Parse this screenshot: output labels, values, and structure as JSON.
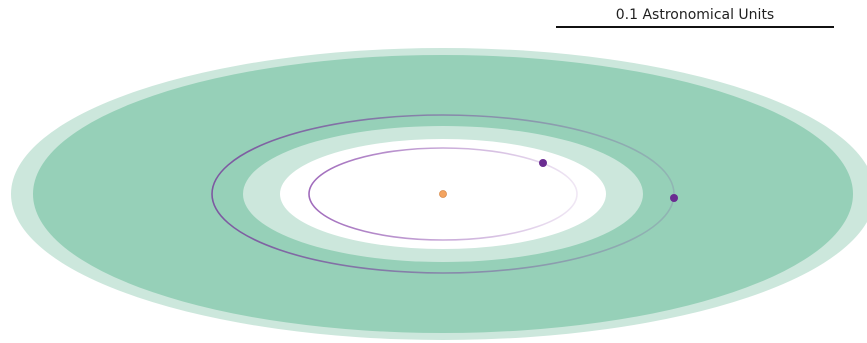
{
  "scale_bar": {
    "label": "0.1 Astronomical Units"
  },
  "colors": {
    "background": "#ffffff",
    "habitable_zone_optimistic": "#cce7dc",
    "habitable_zone_conservative": "#96d0b8",
    "inner_clearing": "#ffffff",
    "star": "#f4a460",
    "star_outline": "#d98b4a",
    "planet": "#6a2c91",
    "inner_orbit": "#9b63b8",
    "outer_orbit": "#7a4a9e",
    "scale_bar": "#111111"
  },
  "bodies": {
    "star": {
      "name": "star",
      "icon": "orange-dot"
    },
    "planets": [
      {
        "name": "inner-planet",
        "orbit": "inner"
      },
      {
        "name": "outer-planet",
        "orbit": "outer"
      }
    ]
  }
}
